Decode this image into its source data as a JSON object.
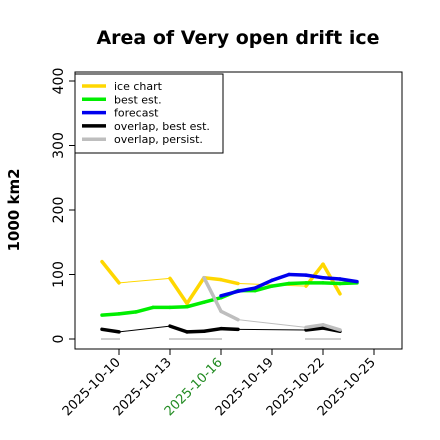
{
  "chart_data": {
    "type": "line",
    "title": "Area of Very open drift ice",
    "ylabel": "1000 km2",
    "xlabel": "",
    "ylim": [
      0,
      400
    ],
    "yticks": [
      0,
      100,
      200,
      300,
      400
    ],
    "xlim": [
      -0.9,
      25.3
    ],
    "x_tick_positions": [
      1,
      4,
      7,
      10,
      13,
      16
    ],
    "x_tick_labels": [
      "2025-10-10",
      "2025-10-13",
      "2025-10-16",
      "2025-10-19",
      "2025-10-22",
      "2025-10-25"
    ],
    "x_tick_colors": [
      "#000000",
      "#000000",
      "#228b22",
      "#000000",
      "#000000",
      "#000000"
    ],
    "legend_position": "top-left",
    "series": [
      {
        "name": "ice chart",
        "color": "#ffd700",
        "points": [
          [
            0,
            120
          ],
          [
            1,
            87
          ],
          [
            4,
            94
          ],
          [
            5,
            55
          ],
          [
            6,
            95
          ],
          [
            7,
            92
          ],
          [
            8,
            86
          ],
          [
            12,
            82
          ],
          [
            13,
            116
          ],
          [
            14,
            70
          ]
        ]
      },
      {
        "name": "best est.",
        "color": "#00ee00",
        "points": [
          [
            0,
            37
          ],
          [
            1,
            39
          ],
          [
            2,
            42
          ],
          [
            3,
            49
          ],
          [
            4,
            49
          ],
          [
            5,
            50
          ],
          [
            6,
            57
          ],
          [
            7,
            64
          ],
          [
            8,
            75
          ],
          [
            9,
            75
          ],
          [
            10,
            82
          ],
          [
            11,
            86
          ],
          [
            12,
            87
          ],
          [
            13,
            87
          ],
          [
            14,
            86
          ],
          [
            15,
            87
          ]
        ]
      },
      {
        "name": "forecast",
        "color": "#0000ee",
        "points": [
          [
            7,
            67
          ],
          [
            8,
            74
          ],
          [
            9,
            79
          ],
          [
            10,
            91
          ],
          [
            11,
            100
          ],
          [
            12,
            99
          ],
          [
            13,
            95
          ],
          [
            14,
            93
          ],
          [
            15,
            89
          ]
        ]
      },
      {
        "name": "overlap, best est.",
        "color": "#000000",
        "points": [
          [
            0,
            15
          ],
          [
            1,
            11
          ],
          [
            4,
            20
          ],
          [
            5,
            11
          ],
          [
            6,
            12
          ],
          [
            7,
            16
          ],
          [
            8,
            15
          ],
          [
            12,
            14
          ],
          [
            13,
            17
          ],
          [
            14,
            12
          ]
        ]
      },
      {
        "name": "overlap, persist.",
        "color": "#bebebe",
        "points": [
          [
            6,
            95
          ],
          [
            7,
            43
          ],
          [
            8,
            30
          ],
          [
            12,
            18
          ],
          [
            13,
            22
          ],
          [
            14,
            14
          ]
        ]
      }
    ],
    "baseline_segments": [
      [
        [
          0,
          1
        ],
        1
      ],
      [
        [
          4,
          7
        ],
        1
      ],
      [
        [
          12,
          14
        ],
        1
      ]
    ]
  }
}
